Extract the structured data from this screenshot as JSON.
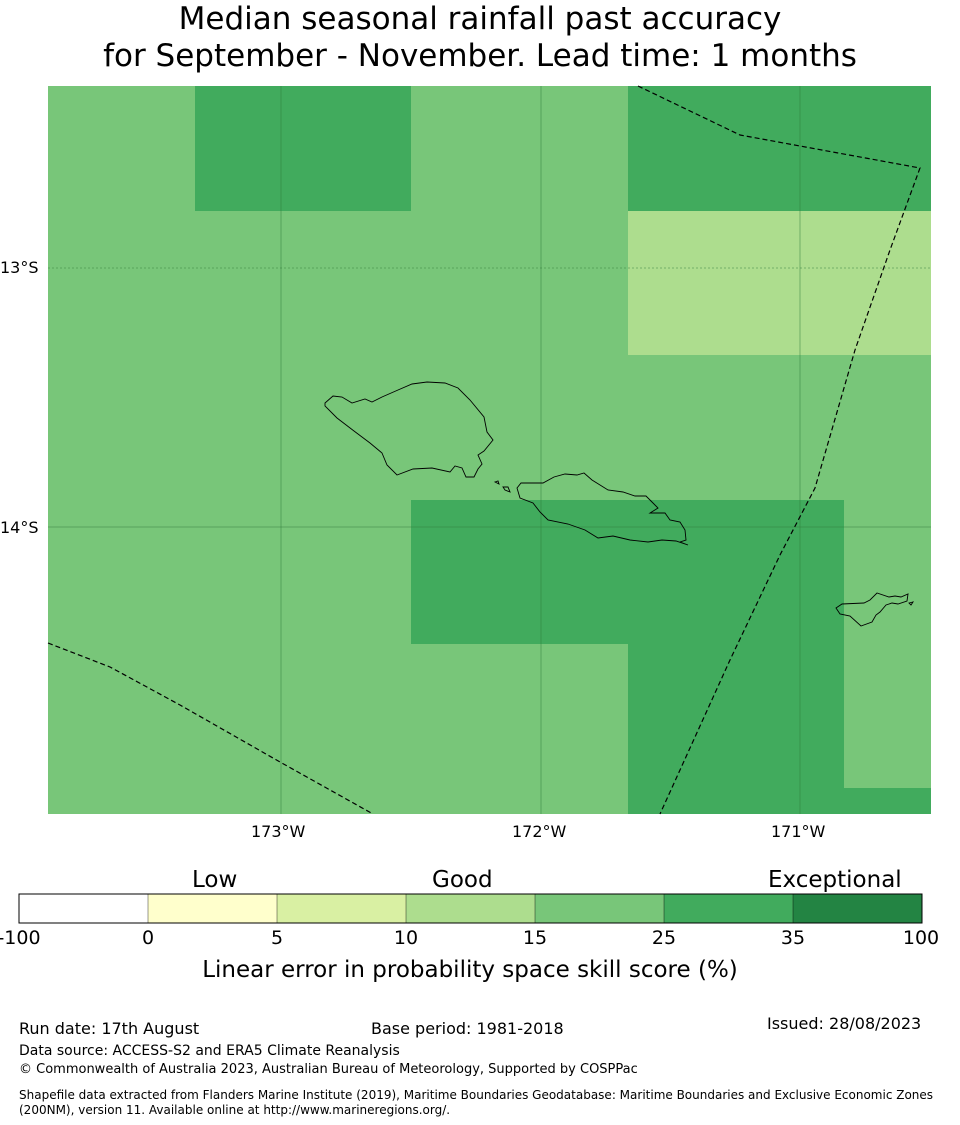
{
  "title": {
    "line1": "Median seasonal rainfall past accuracy",
    "line2": "for September - November. Lead time: 1 months"
  },
  "map": {
    "lat_labels": [
      "13°S",
      "14°S"
    ],
    "lon_labels": [
      "173°W",
      "172°W",
      "171°W"
    ],
    "colors": {
      "skill_5_10": "#d9f0a3",
      "skill_10_15": "#addd8e",
      "skill_15_25": "#78c679",
      "skill_25_35": "#41ab5d",
      "skill_35_100": "#238443"
    }
  },
  "colorbar": {
    "categories": [
      "Low",
      "Good",
      "Exceptional"
    ],
    "ticks": [
      "-100",
      "0",
      "5",
      "10",
      "15",
      "25",
      "35",
      "100"
    ],
    "colors": [
      "#ffffff",
      "#ffffcc",
      "#d9f0a3",
      "#addd8e",
      "#78c679",
      "#41ab5d",
      "#238443"
    ],
    "label": "Linear error in probability space skill score (%)"
  },
  "footer": {
    "run_date": "Run date: 17th August",
    "base_period": "Base period: 1981-2018",
    "issued": "Issued: 28/08/2023",
    "data_source": "Data source: ACCESS-S2 and ERA5 Climate Reanalysis",
    "copyright": "© Commonwealth of Australia 2023, Australian Bureau of Meteorology, Supported by COSPPac",
    "shapefile_line1": "Shapefile data extracted from Flanders Marine Institute (2019), Maritime Boundaries Geodatabase: Maritime Boundaries and Exclusive Economic Zones",
    "shapefile_line2": "(200NM), version 11. Available online at http://www.marineregions.org/."
  }
}
